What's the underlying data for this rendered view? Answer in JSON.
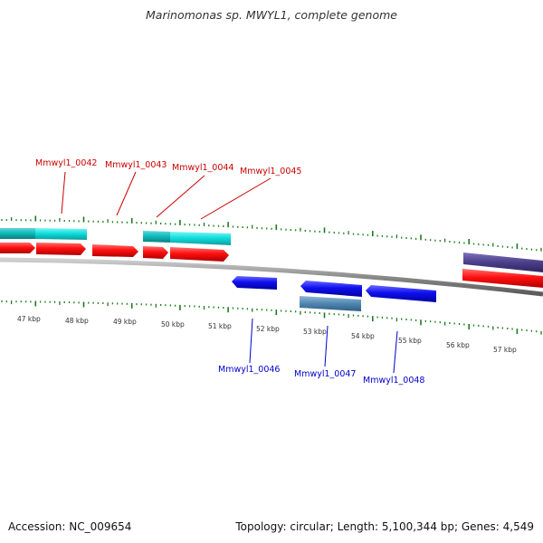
{
  "title": "Marinomonas sp. MWYL1, complete genome",
  "colors": {
    "backbone": "#8a8a8a",
    "tick": "#1e7a1e",
    "forward_label": "#cc0000",
    "reverse_label": "#0000cc",
    "cds_forward": "#ff1010",
    "cds_reverse": "#1010ee",
    "feature_cyan": "#11dede",
    "feature_steel": "#4f86b0",
    "feature_purple": "#4b3f8a"
  },
  "kbp_ticks": [
    "47 kbp",
    "48 kbp",
    "49 kbp",
    "50 kbp",
    "51 kbp",
    "52 kbp",
    "53 kbp",
    "54 kbp",
    "55 kbp",
    "56 kbp",
    "57 kbp"
  ],
  "forward_labels": [
    "Mmwyl1_0042",
    "Mmwyl1_0043",
    "Mmwyl1_0044",
    "Mmwyl1_0045"
  ],
  "reverse_labels": [
    "Mmwyl1_0046",
    "Mmwyl1_0047",
    "Mmwyl1_0048"
  ],
  "footer": {
    "accession": "Accession: NC_009654",
    "summary": "Topology: circular; Length: 5,100,344 bp; Genes: 4,549"
  }
}
